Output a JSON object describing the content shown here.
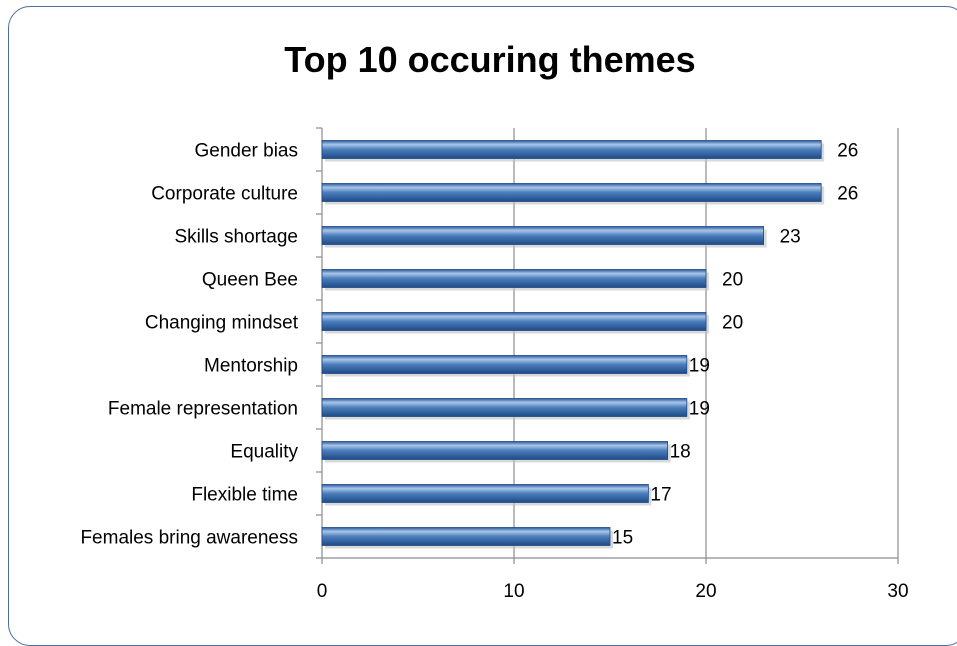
{
  "chart_data": {
    "type": "bar",
    "orientation": "horizontal",
    "title": "Top 10 occuring themes",
    "categories": [
      "Gender bias",
      "Corporate culture",
      "Skills shortage",
      "Queen Bee",
      "Changing mindset",
      "Mentorship",
      "Female representation",
      "Equality",
      "Flexible time",
      "Females bring awareness"
    ],
    "values": [
      26,
      26,
      23,
      20,
      20,
      19,
      19,
      18,
      17,
      15
    ],
    "xlim": [
      0,
      30
    ],
    "xticks": [
      0,
      10,
      20,
      30
    ],
    "xlabel": "",
    "ylabel": "",
    "grid": "vertical",
    "legend": "none",
    "bar_color": "#4a7ebb",
    "bar_highlight": "#a9c6ea",
    "bar_shadow": "#1f4a86"
  }
}
